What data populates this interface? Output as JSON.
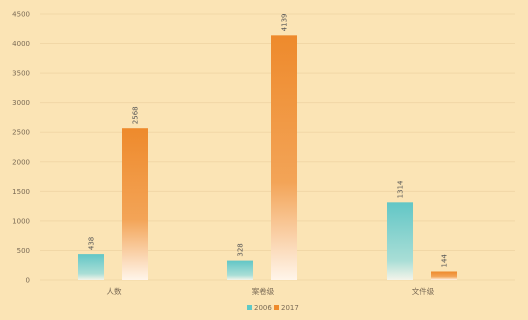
{
  "chart_data": {
    "type": "bar",
    "categories": [
      "人数",
      "案卷级",
      "文件级"
    ],
    "series": [
      {
        "name": "2006",
        "values": [
          438,
          328,
          1314
        ],
        "color": "#5fc9c6"
      },
      {
        "name": "2017",
        "values": [
          2568,
          4139,
          144
        ],
        "color": "#ee8a2c"
      }
    ],
    "ylim": [
      0,
      4500
    ],
    "yticks": [
      0,
      500,
      1000,
      1500,
      2000,
      2500,
      3000,
      3500,
      4000,
      4500
    ],
    "grid": true,
    "legend": "bottom-center",
    "data_labels_rotated": true
  }
}
